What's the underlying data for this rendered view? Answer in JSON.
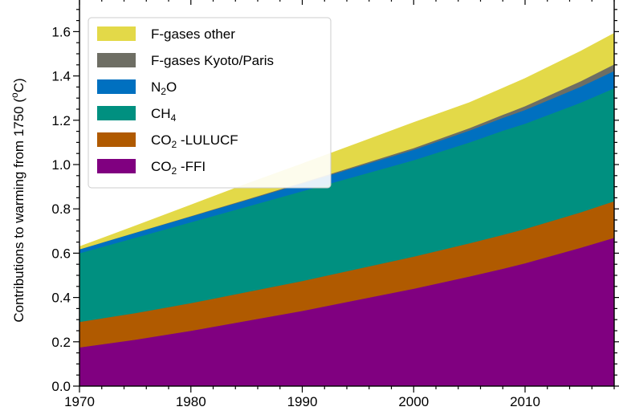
{
  "chart_data": {
    "type": "area",
    "stacked": true,
    "x": [
      1970,
      1975,
      1980,
      1985,
      1990,
      1995,
      2000,
      2005,
      2008,
      2010,
      2015,
      2018
    ],
    "xlim": [
      1970,
      2018
    ],
    "ylim": [
      0.0,
      1.75
    ],
    "xticks": [
      1970,
      1980,
      1990,
      2000,
      2010
    ],
    "yticks": [
      0.0,
      0.2,
      0.4,
      0.6,
      0.8,
      1.0,
      1.2,
      1.4,
      1.6
    ],
    "xtick_labels": [
      "1970",
      "1980",
      "1990",
      "2000",
      "2010"
    ],
    "ytick_labels": [
      "0.0",
      "0.2",
      "0.4",
      "0.6",
      "0.8",
      "1.0",
      "1.2",
      "1.4",
      "1.6"
    ],
    "ylabel_main": "Contributions to warming from 1750 (",
    "ylabel_sup": "o",
    "ylabel_unit": "C)",
    "legend_position": "top-left",
    "series": [
      {
        "key": "co2ffi",
        "label_main": "CO",
        "label_sub": "2",
        "label_rest": " -FFI",
        "color": "#800080",
        "values": [
          0.175,
          0.21,
          0.25,
          0.295,
          0.34,
          0.39,
          0.44,
          0.495,
          0.53,
          0.555,
          0.625,
          0.67
        ]
      },
      {
        "key": "co2luc",
        "label_main": "CO",
        "label_sub": "2",
        "label_rest": " -LULUCF",
        "color": "#b05a00",
        "values": [
          0.115,
          0.12,
          0.125,
          0.13,
          0.135,
          0.14,
          0.145,
          0.15,
          0.153,
          0.155,
          0.16,
          0.165
        ]
      },
      {
        "key": "ch4",
        "label_main": "CH",
        "label_sub": "4",
        "label_rest": "",
        "color": "#009080",
        "values": [
          0.31,
          0.34,
          0.365,
          0.385,
          0.405,
          0.42,
          0.435,
          0.455,
          0.47,
          0.475,
          0.495,
          0.51
        ]
      },
      {
        "key": "n2o",
        "label_main": "N",
        "label_sub": "2",
        "label_rest": "O",
        "color": "#0070c0",
        "values": [
          0.018,
          0.022,
          0.026,
          0.03,
          0.035,
          0.041,
          0.047,
          0.054,
          0.058,
          0.062,
          0.072,
          0.078
        ]
      },
      {
        "key": "fkyoto",
        "label_main": "F-gases Kyoto/Paris",
        "label_sub": "",
        "label_rest": "",
        "color": "#6e6e64",
        "values": [
          0.0,
          0.001,
          0.002,
          0.003,
          0.004,
          0.006,
          0.008,
          0.011,
          0.014,
          0.017,
          0.025,
          0.03
        ]
      },
      {
        "key": "fother",
        "label_main": "F-gases other",
        "label_sub": "",
        "label_rest": "",
        "color": "#e3d948",
        "values": [
          0.012,
          0.03,
          0.05,
          0.07,
          0.085,
          0.1,
          0.115,
          0.115,
          0.12,
          0.125,
          0.135,
          0.14
        ]
      }
    ],
    "legend_order": [
      "fother",
      "fkyoto",
      "n2o",
      "ch4",
      "co2luc",
      "co2ffi"
    ]
  }
}
